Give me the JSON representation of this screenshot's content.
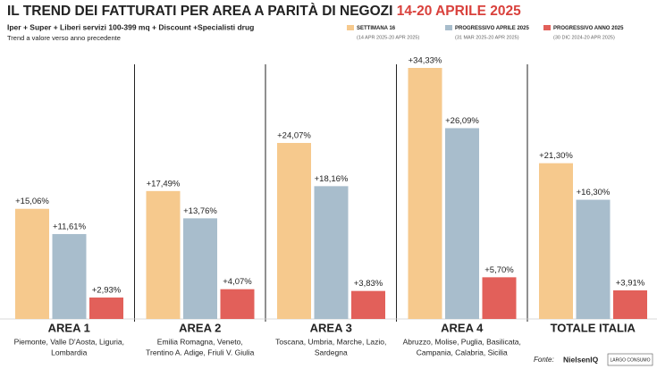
{
  "chart_data": {
    "type": "bar",
    "title": "IL TREND DEI FATTURATI PER AREA A PARITÀ DI NEGOZI",
    "title_highlight": "14-20 APRILE 2025",
    "subtitle": "Iper + Super + Liberi servizi 100-399 mq + Discount +Specialisti drug",
    "note": "Trend a valore verso anno precedente",
    "categories": [
      "AREA 1",
      "AREA 2",
      "AREA 3",
      "AREA 4",
      "TOTALE ITALIA"
    ],
    "category_details": [
      [
        "Piemonte, Valle D'Aosta, Liguria,",
        "Lombardia"
      ],
      [
        "Emilia Romagna, Veneto,",
        "Trentino A. Adige, Friuli V. Giulia"
      ],
      [
        "Toscana, Umbria, Marche, Lazio,",
        "Sardegna"
      ],
      [
        "Abruzzo, Molise, Puglia, Basilicata,",
        "Campania, Calabria, Sicilia"
      ],
      []
    ],
    "series": [
      {
        "name": "SETTIMANA 16",
        "period": "(14 APR 2025-20 APR 2025)",
        "color": "#f6c98d",
        "values": [
          15.06,
          17.49,
          24.07,
          34.33,
          21.3
        ],
        "value_labels": [
          "+15,06%",
          "+17,49%",
          "+24,07%",
          "+34,33%",
          "+21,30%"
        ]
      },
      {
        "name": "PROGRESSIVO APRILE 2025",
        "period": "(31 MAR 2025-20 APR 2025)",
        "color": "#a8bdcc",
        "values": [
          11.61,
          13.76,
          18.16,
          26.09,
          16.3
        ],
        "value_labels": [
          "+11,61%",
          "+13,76%",
          "+18,16%",
          "+26,09%",
          "+16,30%"
        ]
      },
      {
        "name": "PROGRESSIVO ANNO 2025",
        "period": "(30 DIC 2024-20 APR 2025)",
        "color": "#e2605a",
        "values": [
          2.93,
          4.07,
          3.83,
          5.7,
          3.91
        ],
        "value_labels": [
          "+2,93%",
          "+4,07%",
          "+3,83%",
          "+5,70%",
          "+3,91%"
        ]
      }
    ],
    "source_label": "Fonte:",
    "source": [
      "NielsenIQ",
      "LARGO CONSUMO"
    ]
  }
}
